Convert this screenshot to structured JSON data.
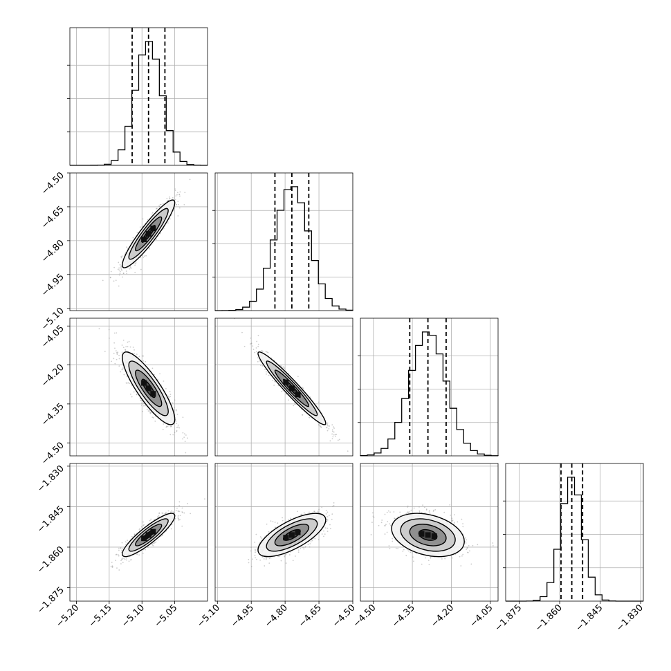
{
  "chart_data": {
    "type": "corner",
    "grid": true,
    "parameters": [
      {
        "index": 0,
        "range": [
          -5.21,
          -5.0
        ],
        "ticks": [
          "-5.20",
          "-5.15",
          "-5.10",
          "-5.05"
        ],
        "tick_values": [
          -5.2,
          -5.15,
          -5.1,
          -5.05
        ],
        "mean": -5.09,
        "sigma": 0.02,
        "quantiles": [
          -5.115,
          -5.09,
          -5.065
        ]
      },
      {
        "index": 1,
        "range": [
          -5.11,
          -4.5
        ],
        "ticks": [
          "-5.10",
          "-4.95",
          "-4.80",
          "-4.65",
          "-4.50"
        ],
        "tick_values": [
          -5.1,
          -4.95,
          -4.8,
          -4.65,
          -4.5
        ],
        "mean": -4.77,
        "sigma": 0.075,
        "quantiles": [
          -4.845,
          -4.77,
          -4.695
        ]
      },
      {
        "index": 2,
        "range": [
          -4.55,
          -4.02
        ],
        "ticks": [
          "-4.50",
          "-4.35",
          "-4.20",
          "-4.05"
        ],
        "tick_values": [
          -4.5,
          -4.35,
          -4.2,
          -4.05
        ],
        "mean": -4.29,
        "sigma": 0.07,
        "quantiles": [
          -4.36,
          -4.29,
          -4.22
        ]
      },
      {
        "index": 3,
        "range": [
          -1.88,
          -1.829
        ],
        "ticks": [
          "-1.875",
          "-1.860",
          "-1.845",
          "-1.830"
        ],
        "tick_values": [
          -1.875,
          -1.86,
          -1.845,
          -1.83
        ],
        "mean": -1.8555,
        "sigma": 0.004,
        "quantiles": [
          -1.8595,
          -1.8555,
          -1.8515
        ]
      }
    ],
    "correlations": [
      {
        "row": 1,
        "col": 0,
        "rho": 0.92
      },
      {
        "row": 2,
        "col": 0,
        "rho": -0.85
      },
      {
        "row": 2,
        "col": 1,
        "rho": -0.96
      },
      {
        "row": 3,
        "col": 0,
        "rho": 0.88
      },
      {
        "row": 3,
        "col": 1,
        "rho": 0.7
      },
      {
        "row": 3,
        "col": 2,
        "rho": -0.3
      }
    ],
    "contour_levels_sigma": [
      0.5,
      1.0,
      1.5,
      2.0
    ],
    "colors": {
      "line": "#000000",
      "grid": "#b0b0b0",
      "hist_fill": "#555555",
      "points": "#9a9a9a"
    }
  }
}
